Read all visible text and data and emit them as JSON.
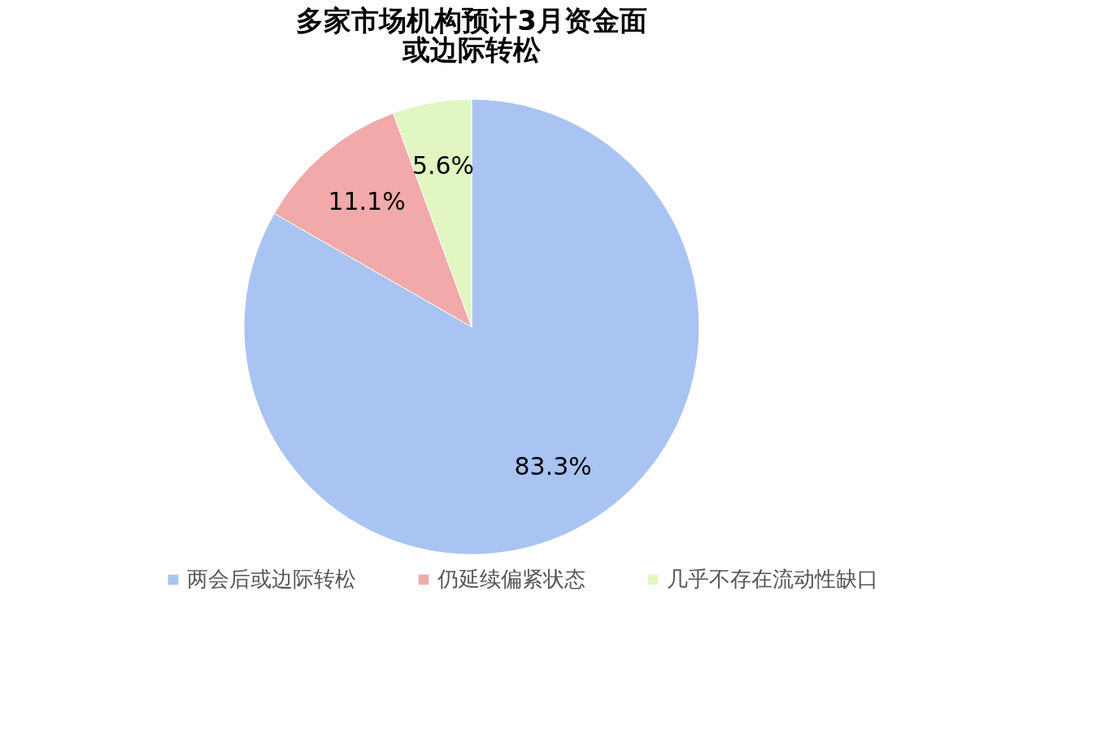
{
  "chart_data": {
    "type": "pie",
    "title": "多家市场机构预计3月资金面或边际转松",
    "categories": [
      "两会后或边际转松",
      "仍延续偏紧状态",
      "几乎不存在流动性缺口"
    ],
    "values": [
      83.3,
      11.1,
      5.6
    ],
    "colors": [
      "#a9c3f3",
      "#f1aaa9",
      "#e1f6c1"
    ],
    "value_labels": [
      "83.3%",
      "11.1%",
      "5.6%"
    ],
    "legend": "bottom"
  }
}
